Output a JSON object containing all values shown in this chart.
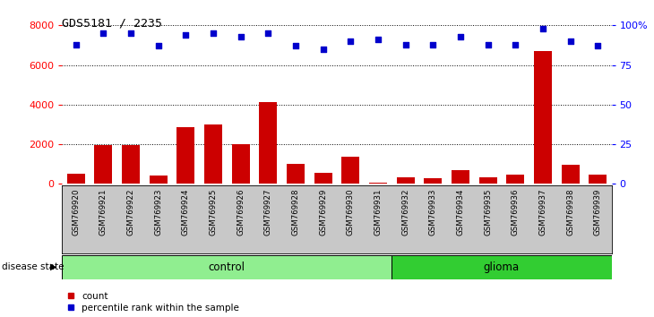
{
  "title": "GDS5181 / 2235",
  "samples": [
    "GSM769920",
    "GSM769921",
    "GSM769922",
    "GSM769923",
    "GSM769924",
    "GSM769925",
    "GSM769926",
    "GSM769927",
    "GSM769928",
    "GSM769929",
    "GSM769930",
    "GSM769931",
    "GSM769932",
    "GSM769933",
    "GSM769934",
    "GSM769935",
    "GSM769936",
    "GSM769937",
    "GSM769938",
    "GSM769939"
  ],
  "counts": [
    500,
    1950,
    1950,
    400,
    2850,
    3000,
    2000,
    4150,
    1000,
    550,
    1350,
    50,
    350,
    300,
    700,
    350,
    450,
    6700,
    950,
    450
  ],
  "percentiles": [
    88,
    95,
    95,
    87,
    94,
    95,
    93,
    95,
    87,
    85,
    90,
    91,
    88,
    88,
    93,
    88,
    88,
    98,
    90,
    87
  ],
  "n_control": 12,
  "n_glioma": 8,
  "bar_color": "#cc0000",
  "dot_color": "#0000cc",
  "control_color": "#90EE90",
  "glioma_color": "#32CD32",
  "bg_color": "#c8c8c8",
  "ylim_left": [
    0,
    8000
  ],
  "ylim_right": [
    0,
    100
  ],
  "yticks_left": [
    0,
    2000,
    4000,
    6000,
    8000
  ],
  "yticks_right": [
    0,
    25,
    50,
    75,
    100
  ],
  "ytick_labels_right": [
    "0",
    "25",
    "50",
    "75",
    "100%"
  ]
}
